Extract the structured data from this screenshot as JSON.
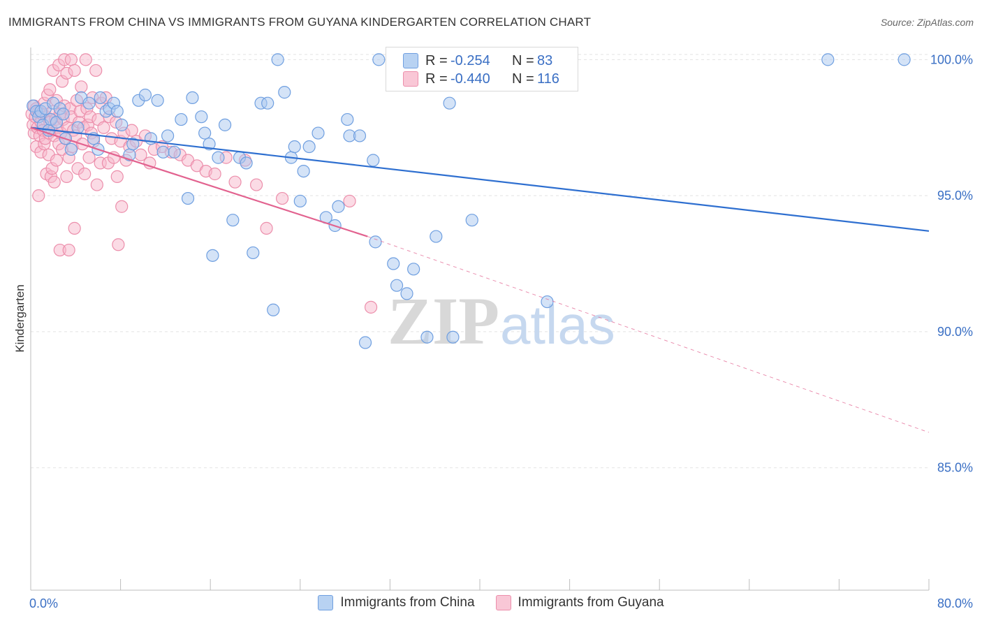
{
  "title": "IMMIGRANTS FROM CHINA VS IMMIGRANTS FROM GUYANA KINDERGARTEN CORRELATION CHART",
  "source": "Source: ZipAtlas.com",
  "watermark": {
    "zip": "ZIP",
    "atlas": "atlas"
  },
  "legend": {
    "r_label": "R =",
    "n_label": "N =",
    "china": {
      "r": "-0.254",
      "n": "83"
    },
    "guyana": {
      "r": "-0.440",
      "n": "116"
    }
  },
  "colors": {
    "china_fill": "#a9c8f0",
    "china_stroke": "#6f9fe0",
    "china_line": "#2e6fd0",
    "guyana_fill": "#f7b8cc",
    "guyana_stroke": "#ec8eab",
    "guyana_line": "#e2628f",
    "axis_label": "#3a6fc4",
    "grid": "#e3e3e3"
  },
  "chart_data": {
    "type": "scatter",
    "title": "IMMIGRANTS FROM CHINA VS IMMIGRANTS FROM GUYANA KINDERGARTEN CORRELATION CHART",
    "xlabel": "",
    "ylabel": "Kindergarten",
    "xlim": [
      0,
      80
    ],
    "ylim": [
      80.5,
      100.6
    ],
    "x_tick_labels": [
      "0.0%",
      "80.0%"
    ],
    "y_ticks": [
      85,
      90,
      95,
      100
    ],
    "y_tick_labels": [
      "85.0%",
      "90.0%",
      "95.0%",
      "100.0%"
    ],
    "grid": true,
    "legend_position": "top-center",
    "series": [
      {
        "name": "Immigrants from China",
        "r": -0.254,
        "n": 83,
        "trend": {
          "x": [
            0,
            80
          ],
          "y": [
            97.5,
            93.7
          ],
          "style": "solid"
        },
        "points": [
          [
            0.2,
            98.3
          ],
          [
            0.5,
            98.1
          ],
          [
            0.7,
            97.9
          ],
          [
            0.9,
            98.1
          ],
          [
            1.1,
            97.6
          ],
          [
            1.3,
            98.2
          ],
          [
            1.6,
            97.4
          ],
          [
            1.8,
            97.8
          ],
          [
            2.0,
            98.4
          ],
          [
            2.3,
            97.7
          ],
          [
            2.6,
            98.2
          ],
          [
            2.9,
            98.0
          ],
          [
            3.1,
            97.1
          ],
          [
            3.6,
            96.7
          ],
          [
            4.2,
            97.5
          ],
          [
            4.5,
            98.6
          ],
          [
            5.2,
            98.4
          ],
          [
            5.6,
            97.1
          ],
          [
            6.0,
            96.7
          ],
          [
            6.2,
            98.6
          ],
          [
            6.7,
            98.1
          ],
          [
            7.0,
            98.2
          ],
          [
            7.4,
            98.4
          ],
          [
            7.7,
            98.1
          ],
          [
            8.1,
            97.6
          ],
          [
            8.8,
            96.5
          ],
          [
            9.1,
            96.9
          ],
          [
            9.6,
            98.5
          ],
          [
            10.2,
            98.7
          ],
          [
            10.7,
            97.1
          ],
          [
            11.3,
            98.5
          ],
          [
            11.8,
            96.6
          ],
          [
            12.2,
            97.2
          ],
          [
            12.8,
            96.6
          ],
          [
            13.4,
            97.8
          ],
          [
            14.0,
            94.9
          ],
          [
            14.4,
            98.6
          ],
          [
            15.2,
            97.9
          ],
          [
            15.5,
            97.3
          ],
          [
            15.9,
            96.9
          ],
          [
            16.2,
            92.8
          ],
          [
            16.7,
            96.4
          ],
          [
            17.3,
            97.6
          ],
          [
            18.0,
            94.1
          ],
          [
            18.6,
            96.4
          ],
          [
            19.2,
            96.2
          ],
          [
            19.8,
            92.9
          ],
          [
            20.5,
            98.4
          ],
          [
            21.1,
            98.4
          ],
          [
            21.6,
            90.8
          ],
          [
            22.0,
            100.0
          ],
          [
            22.6,
            98.8
          ],
          [
            23.2,
            96.4
          ],
          [
            23.5,
            96.8
          ],
          [
            24.0,
            94.8
          ],
          [
            24.3,
            95.9
          ],
          [
            24.8,
            96.8
          ],
          [
            25.6,
            97.3
          ],
          [
            26.3,
            94.2
          ],
          [
            27.1,
            93.9
          ],
          [
            27.4,
            94.6
          ],
          [
            28.2,
            97.8
          ],
          [
            28.4,
            97.2
          ],
          [
            29.3,
            97.2
          ],
          [
            29.8,
            89.6
          ],
          [
            30.5,
            96.3
          ],
          [
            30.7,
            93.3
          ],
          [
            31.0,
            100.0
          ],
          [
            32.3,
            92.5
          ],
          [
            32.6,
            91.7
          ],
          [
            33.0,
            99.9
          ],
          [
            33.5,
            91.4
          ],
          [
            34.1,
            92.3
          ],
          [
            35.3,
            89.8
          ],
          [
            35.7,
            100.0
          ],
          [
            36.1,
            93.5
          ],
          [
            37.3,
            98.4
          ],
          [
            37.6,
            89.8
          ],
          [
            39.3,
            94.1
          ],
          [
            41.0,
            100.0
          ],
          [
            46.0,
            91.1
          ],
          [
            71.0,
            100.0
          ],
          [
            77.8,
            100.0
          ]
        ]
      },
      {
        "name": "Immigrants from Guyana",
        "r": -0.44,
        "n": 116,
        "trend": {
          "x": [
            0,
            30
          ],
          "y": [
            97.5,
            93.5
          ],
          "style": "solid",
          "extended": {
            "x": [
              30,
              80
            ],
            "y": [
              93.5,
              86.3
            ],
            "style": "dashed"
          }
        },
        "points": [
          [
            0.1,
            98.0
          ],
          [
            0.2,
            97.6
          ],
          [
            0.3,
            98.3
          ],
          [
            0.3,
            97.3
          ],
          [
            0.4,
            97.9
          ],
          [
            0.5,
            98.2
          ],
          [
            0.5,
            96.8
          ],
          [
            0.6,
            97.5
          ],
          [
            0.7,
            98.1
          ],
          [
            0.7,
            95.0
          ],
          [
            0.8,
            97.2
          ],
          [
            0.9,
            97.7
          ],
          [
            0.9,
            96.6
          ],
          [
            1.0,
            98.0
          ],
          [
            1.1,
            97.4
          ],
          [
            1.2,
            96.9
          ],
          [
            1.2,
            98.4
          ],
          [
            1.3,
            97.1
          ],
          [
            1.4,
            95.8
          ],
          [
            1.4,
            97.9
          ],
          [
            1.5,
            98.7
          ],
          [
            1.6,
            97.3
          ],
          [
            1.6,
            96.5
          ],
          [
            1.7,
            97.7
          ],
          [
            1.7,
            98.9
          ],
          [
            1.8,
            95.7
          ],
          [
            1.9,
            97.4
          ],
          [
            1.9,
            96.0
          ],
          [
            2.0,
            99.6
          ],
          [
            2.0,
            98.1
          ],
          [
            2.1,
            97.2
          ],
          [
            2.1,
            95.5
          ],
          [
            2.2,
            97.8
          ],
          [
            2.3,
            96.3
          ],
          [
            2.3,
            98.5
          ],
          [
            2.4,
            97.5
          ],
          [
            2.5,
            99.8
          ],
          [
            2.5,
            96.9
          ],
          [
            2.6,
            93.0
          ],
          [
            2.6,
            98.0
          ],
          [
            2.7,
            97.3
          ],
          [
            2.8,
            99.2
          ],
          [
            2.8,
            96.7
          ],
          [
            2.9,
            97.8
          ],
          [
            3.0,
            100.0
          ],
          [
            3.0,
            98.3
          ],
          [
            3.1,
            97.1
          ],
          [
            3.2,
            95.7
          ],
          [
            3.2,
            99.5
          ],
          [
            3.3,
            97.5
          ],
          [
            3.4,
            96.4
          ],
          [
            3.4,
            93.0
          ],
          [
            3.5,
            98.2
          ],
          [
            3.6,
            97.9
          ],
          [
            3.6,
            100.0
          ],
          [
            3.7,
            96.8
          ],
          [
            3.8,
            97.4
          ],
          [
            3.9,
            93.8
          ],
          [
            3.9,
            99.6
          ],
          [
            4.0,
            97.2
          ],
          [
            4.1,
            98.5
          ],
          [
            4.2,
            96.0
          ],
          [
            4.3,
            97.7
          ],
          [
            4.4,
            98.1
          ],
          [
            4.5,
            99.0
          ],
          [
            4.6,
            96.9
          ],
          [
            4.7,
            97.5
          ],
          [
            4.8,
            95.8
          ],
          [
            4.9,
            100.0
          ],
          [
            5.0,
            98.2
          ],
          [
            5.1,
            97.6
          ],
          [
            5.2,
            96.4
          ],
          [
            5.3,
            97.9
          ],
          [
            5.4,
            97.3
          ],
          [
            5.5,
            98.6
          ],
          [
            5.6,
            97.0
          ],
          [
            5.8,
            99.6
          ],
          [
            5.9,
            95.4
          ],
          [
            6.0,
            97.8
          ],
          [
            6.2,
            96.2
          ],
          [
            6.3,
            98.4
          ],
          [
            6.5,
            97.5
          ],
          [
            6.7,
            98.6
          ],
          [
            6.9,
            96.2
          ],
          [
            7.0,
            97.9
          ],
          [
            7.2,
            97.1
          ],
          [
            7.4,
            96.4
          ],
          [
            7.6,
            97.7
          ],
          [
            7.7,
            95.7
          ],
          [
            7.8,
            93.2
          ],
          [
            8.0,
            97.0
          ],
          [
            8.1,
            94.6
          ],
          [
            8.3,
            97.3
          ],
          [
            8.5,
            96.3
          ],
          [
            8.8,
            96.8
          ],
          [
            9.0,
            97.4
          ],
          [
            9.4,
            97.0
          ],
          [
            9.8,
            96.5
          ],
          [
            10.2,
            97.2
          ],
          [
            10.6,
            96.2
          ],
          [
            11.0,
            96.7
          ],
          [
            11.7,
            96.8
          ],
          [
            12.5,
            96.6
          ],
          [
            13.3,
            96.5
          ],
          [
            14.0,
            96.3
          ],
          [
            14.8,
            96.1
          ],
          [
            15.6,
            95.9
          ],
          [
            16.4,
            95.8
          ],
          [
            17.4,
            96.4
          ],
          [
            18.2,
            95.5
          ],
          [
            19.1,
            96.3
          ],
          [
            20.1,
            95.4
          ],
          [
            21.0,
            93.8
          ],
          [
            22.4,
            94.9
          ],
          [
            28.4,
            94.8
          ],
          [
            30.3,
            90.9
          ]
        ]
      }
    ]
  }
}
